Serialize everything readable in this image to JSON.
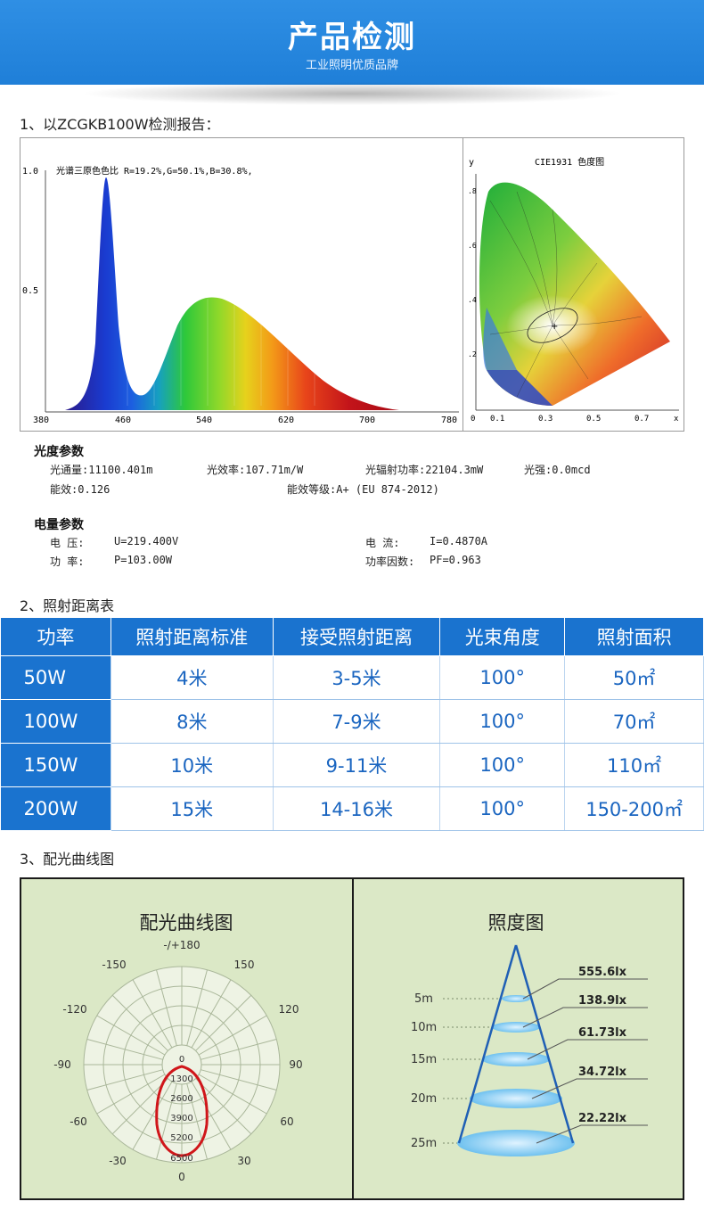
{
  "header": {
    "title": "产品检测",
    "subtitle": "工业照明优质品牌"
  },
  "section1": {
    "title": "1、以ZCGKB100W检测报告：",
    "spectrum": {
      "caption": "光谱三原色色比  R=19.2%,G=50.1%,B=30.8%,",
      "y_ticks": [
        "1.0",
        "0.5"
      ],
      "x_ticks": [
        "380",
        "460",
        "540",
        "620",
        "700",
        "780"
      ]
    },
    "cie": {
      "title": "CIE1931 色度图",
      "y_label": "y",
      "x_label": "x",
      "y_ticks": [
        ".8",
        ".6",
        ".4",
        ".2"
      ],
      "x_ticks": [
        "0",
        "0.1",
        "0.3",
        "0.5",
        "0.7"
      ]
    },
    "photometric": {
      "heading": "光度参数",
      "flux": "光通量:11100.401m",
      "efficacy": "光效率:107.71m/W",
      "radiant_power": "光辐射功率:22104.3mW",
      "intensity": "光强:0.0mcd",
      "energy_eff": "能效:0.126",
      "energy_grade": "能效等级:A+ (EU 874-2012)"
    },
    "electrical": {
      "heading": "电量参数",
      "voltage_label": "电    压:",
      "voltage": "U=219.400V",
      "current_label": "电    流:",
      "current": "I=0.4870A",
      "power_label": "功    率:",
      "power": "P=103.00W",
      "pf_label": "功率因数:",
      "pf": "PF=0.963"
    }
  },
  "section2": {
    "title": "2、照射距离表",
    "headers": [
      "功率",
      "照射距离标准",
      "接受照射距离",
      "光束角度",
      "照射面积"
    ],
    "rows": [
      [
        "50W",
        "4米",
        "3-5米",
        "100°",
        "50㎡"
      ],
      [
        "100W",
        "8米",
        "7-9米",
        "100°",
        "70㎡"
      ],
      [
        "150W",
        "10米",
        "9-11米",
        "100°",
        "110㎡"
      ],
      [
        "200W",
        "15米",
        "14-16米",
        "100°",
        "150-200㎡"
      ]
    ]
  },
  "section3": {
    "title": "3、配光曲线图",
    "polar": {
      "title": "配光曲线图",
      "angle_labels": [
        "-/+180",
        "-150",
        "150",
        "-120",
        "120",
        "-90",
        "90",
        "-60",
        "60",
        "-30",
        "30",
        "0"
      ],
      "radial_labels": [
        "0",
        "1300",
        "2600",
        "3900",
        "5200",
        "6500"
      ]
    },
    "illuminance": {
      "title": "照度图",
      "distances": [
        "5m",
        "10m",
        "15m",
        "20m",
        "25m"
      ],
      "lux": [
        "555.6lx",
        "138.9lx",
        "61.73lx",
        "34.72lx",
        "22.22lx"
      ]
    }
  },
  "colors": {
    "brand_blue": "#1a73cf",
    "panel_green": "#dbe8c6",
    "curve_red": "#d0161a"
  }
}
